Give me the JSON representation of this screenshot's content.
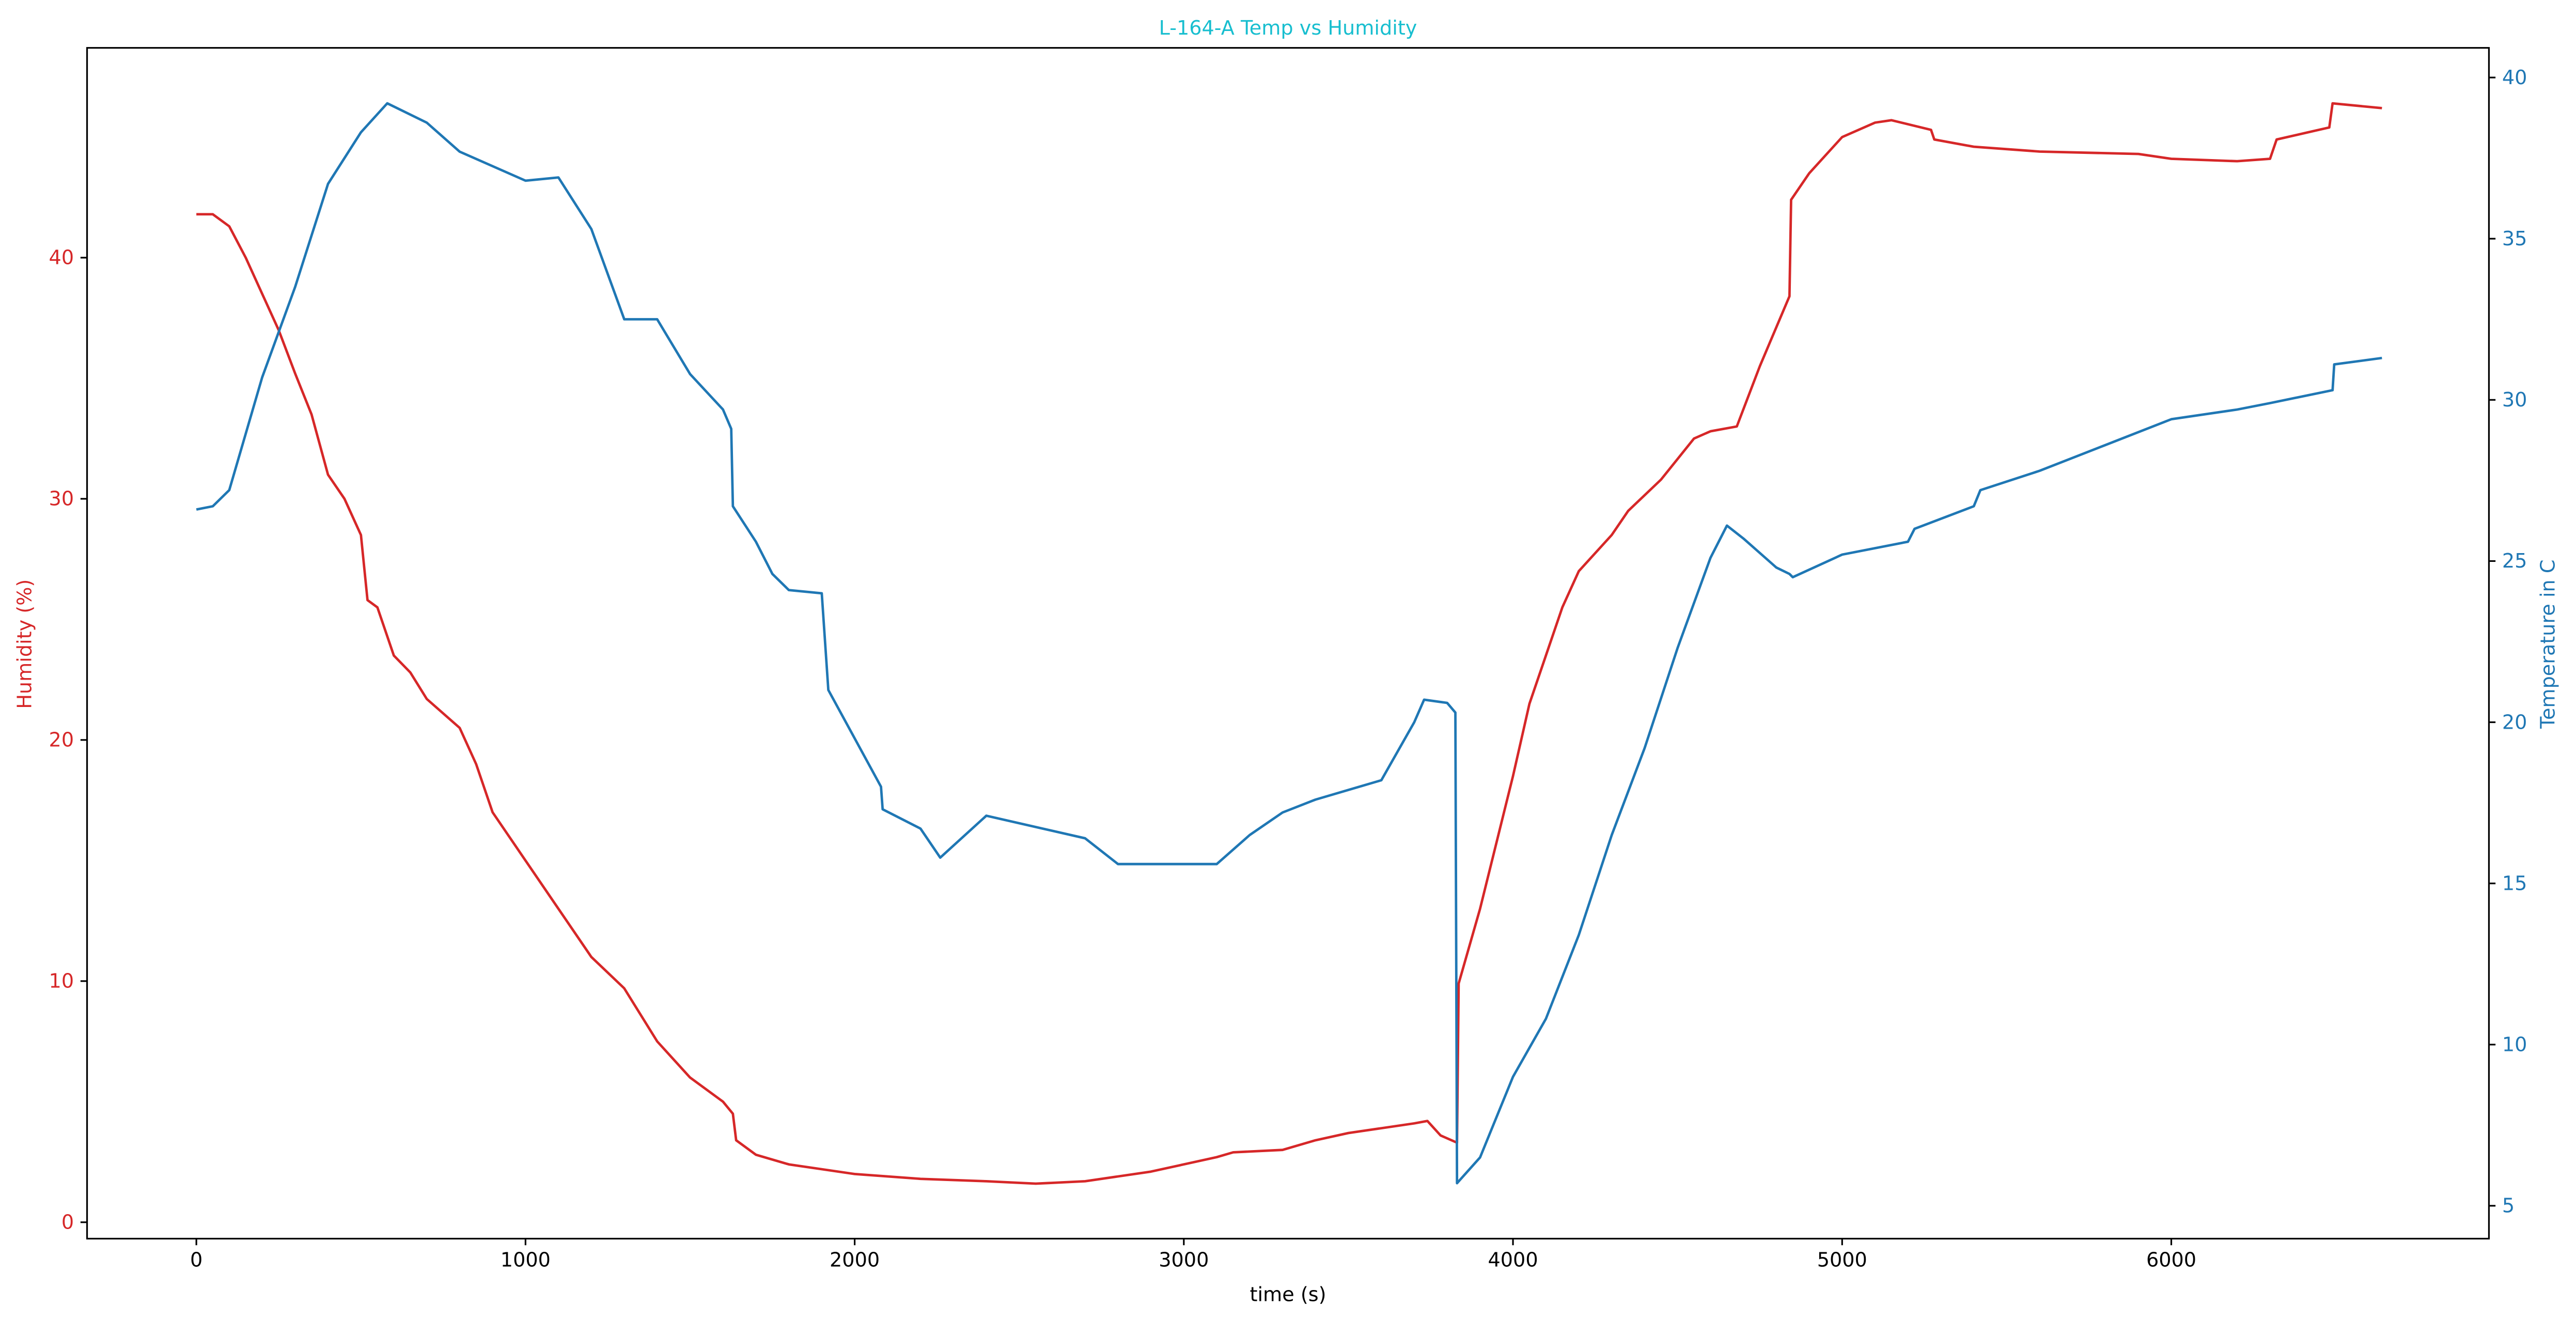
{
  "chart_data": {
    "type": "line",
    "title": "L-164-A Temp vs Humidity",
    "title_color": "#17becf",
    "xlabel": "time (s)",
    "ylabel": "Humidity (%)",
    "y2label": "Temperature in C",
    "xlim": [
      -332,
      6965
    ],
    "xticks": [
      0,
      1000,
      2000,
      3000,
      4000,
      5000,
      6000
    ],
    "ylim": [
      -0.68,
      48.7
    ],
    "yticks": [
      0,
      10,
      20,
      30,
      40
    ],
    "y2lim": [
      3.98,
      40.92
    ],
    "y2ticks": [
      5,
      10,
      15,
      20,
      25,
      30,
      35,
      40
    ],
    "series": [
      {
        "color": "#d62728",
        "axis": "y",
        "x": [
          0,
          50,
          100,
          150,
          200,
          250,
          300,
          350,
          400,
          450,
          500,
          520,
          550,
          600,
          650,
          700,
          800,
          850,
          900,
          1000,
          1100,
          1200,
          1300,
          1400,
          1500,
          1600,
          1630,
          1640,
          1700,
          1800,
          1900,
          2000,
          2200,
          2400,
          2550,
          2700,
          2800,
          2900,
          3000,
          3100,
          3150,
          3300,
          3400,
          3500,
          3600,
          3700,
          3740,
          3780,
          3830,
          3835,
          3900,
          4000,
          4050,
          4100,
          4150,
          4200,
          4300,
          4350,
          4450,
          4550,
          4600,
          4680,
          4750,
          4840,
          4845,
          4900,
          5000,
          5100,
          5150,
          5270,
          5280,
          5400,
          5600,
          5900,
          6000,
          6200,
          6300,
          6320,
          6480,
          6490,
          6640
        ],
        "values": [
          41.8,
          41.8,
          41.3,
          40,
          38.5,
          37,
          35.2,
          33.5,
          31,
          30,
          28.5,
          25.8,
          25.5,
          23.5,
          22.8,
          21.7,
          20.5,
          19,
          17,
          15,
          13,
          11,
          9.7,
          7.5,
          6,
          5,
          4.5,
          3.4,
          2.8,
          2.4,
          2.2,
          2,
          1.8,
          1.7,
          1.6,
          1.7,
          1.9,
          2.1,
          2.4,
          2.7,
          2.9,
          3.0,
          3.4,
          3.7,
          3.9,
          4.1,
          4.2,
          3.6,
          3.3,
          9.9,
          13,
          18.5,
          21.5,
          23.5,
          25.5,
          27,
          28.5,
          29.5,
          30.8,
          32.5,
          32.8,
          33.0,
          35.5,
          38.4,
          42.4,
          43.5,
          45,
          45.6,
          45.7,
          45.3,
          44.9,
          44.6,
          44.4,
          44.3,
          44.1,
          44,
          44.1,
          44.9,
          45.4,
          46.4,
          46.2
        ]
      },
      {
        "color": "#1f77b4",
        "axis": "y2",
        "x": [
          0,
          50,
          100,
          200,
          300,
          400,
          500,
          580,
          700,
          800,
          1000,
          1100,
          1200,
          1300,
          1400,
          1500,
          1600,
          1625,
          1630,
          1700,
          1750,
          1800,
          1900,
          1920,
          2000,
          2080,
          2085,
          2200,
          2260,
          2400,
          2700,
          2800,
          3100,
          3200,
          3300,
          3400,
          3600,
          3700,
          3730,
          3800,
          3825,
          3830,
          3900,
          4000,
          4100,
          4200,
          4300,
          4400,
          4500,
          4600,
          4650,
          4700,
          4800,
          4840,
          4850,
          5000,
          5200,
          5220,
          5400,
          5420,
          5600,
          5800,
          6000,
          6200,
          6300,
          6490,
          6495,
          6640
        ],
        "values": [
          26.6,
          26.7,
          27.2,
          30.7,
          33.5,
          36.7,
          38.3,
          39.2,
          38.6,
          37.7,
          36.8,
          36.9,
          35.3,
          32.5,
          32.5,
          30.8,
          29.7,
          29.1,
          26.7,
          25.6,
          24.6,
          24.1,
          24.0,
          21.0,
          19.5,
          18.0,
          17.3,
          16.7,
          15.8,
          17.1,
          16.4,
          15.6,
          15.6,
          16.5,
          17.2,
          17.6,
          18.2,
          20.0,
          20.7,
          20.6,
          20.3,
          5.7,
          6.5,
          9.0,
          10.8,
          13.4,
          16.5,
          19.2,
          22.3,
          25.1,
          26.1,
          25.7,
          24.8,
          24.6,
          24.5,
          25.2,
          25.6,
          26.0,
          26.7,
          27.2,
          27.8,
          28.6,
          29.4,
          29.7,
          29.9,
          30.3,
          31.1,
          31.3
        ]
      }
    ]
  }
}
